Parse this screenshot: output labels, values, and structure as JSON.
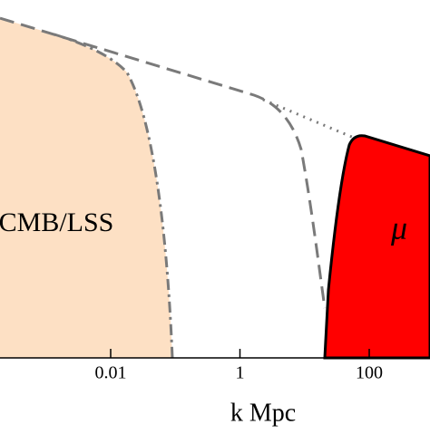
{
  "chart_data": {
    "type": "region",
    "x_label": "k Mpc",
    "xscale": "log",
    "xlim": [
      0.000194,
      871
    ],
    "xticks": [
      0.01,
      1,
      100
    ],
    "annotations": [
      "CMB/LSS",
      "μ"
    ]
  }
}
